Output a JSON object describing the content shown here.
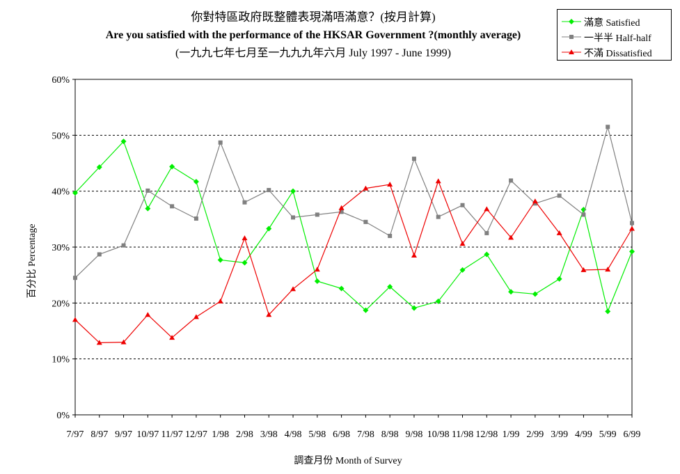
{
  "chart_data": {
    "type": "line",
    "title": "你對特區政府既整體表現滿唔滿意？(按月計算)",
    "title_en": "Are you satisfied with the performance of the HKSAR Government ?(monthly average)",
    "subtitle": "(一九九七年七月至一九九九年六月 July 1997 - June 1999)",
    "xlabel": "調查月份 Month of Survey",
    "ylabel": "百分比 Percentage",
    "categories": [
      "7/97",
      "8/97",
      "9/97",
      "10/97",
      "11/97",
      "12/97",
      "1/98",
      "2/98",
      "3/98",
      "4/98",
      "5/98",
      "6/98",
      "7/98",
      "8/98",
      "9/98",
      "10/98",
      "11/98",
      "12/98",
      "1/99",
      "2/99",
      "3/99",
      "4/99",
      "5/99",
      "6/99"
    ],
    "y_ticks": [
      "0%",
      "10%",
      "20%",
      "30%",
      "40%",
      "50%",
      "60%"
    ],
    "ylim": [
      0,
      60
    ],
    "grid": "horizontal dashed",
    "legend_position": "top-right",
    "series": [
      {
        "name": "滿意 Satisfied",
        "color": "#00ee00",
        "marker": "diamond",
        "values": [
          39.7,
          44.3,
          48.9,
          36.9,
          44.4,
          41.7,
          27.7,
          27.2,
          33.3,
          40.0,
          23.9,
          22.6,
          18.7,
          22.9,
          19.1,
          20.3,
          25.9,
          28.7,
          22.0,
          21.6,
          24.3,
          36.7,
          18.5,
          29.2
        ]
      },
      {
        "name": "一半半 Half-half",
        "color": "#808080",
        "marker": "square",
        "values": [
          24.5,
          28.7,
          30.3,
          40.1,
          37.3,
          35.1,
          48.7,
          38.0,
          40.2,
          35.3,
          35.8,
          36.3,
          34.5,
          32.0,
          45.8,
          35.4,
          37.5,
          32.5,
          41.9,
          37.8,
          39.2,
          35.8,
          51.5,
          34.3
        ]
      },
      {
        "name": "不滿 Dissatisfied",
        "color": "#ee0000",
        "marker": "triangle",
        "values": [
          17.0,
          12.9,
          13.0,
          17.9,
          13.8,
          17.5,
          20.3,
          31.6,
          17.9,
          22.5,
          26.0,
          37.0,
          40.5,
          41.2,
          28.5,
          41.8,
          30.6,
          36.8,
          31.7,
          38.2,
          32.5,
          25.9,
          26.0,
          33.3
        ]
      }
    ]
  }
}
